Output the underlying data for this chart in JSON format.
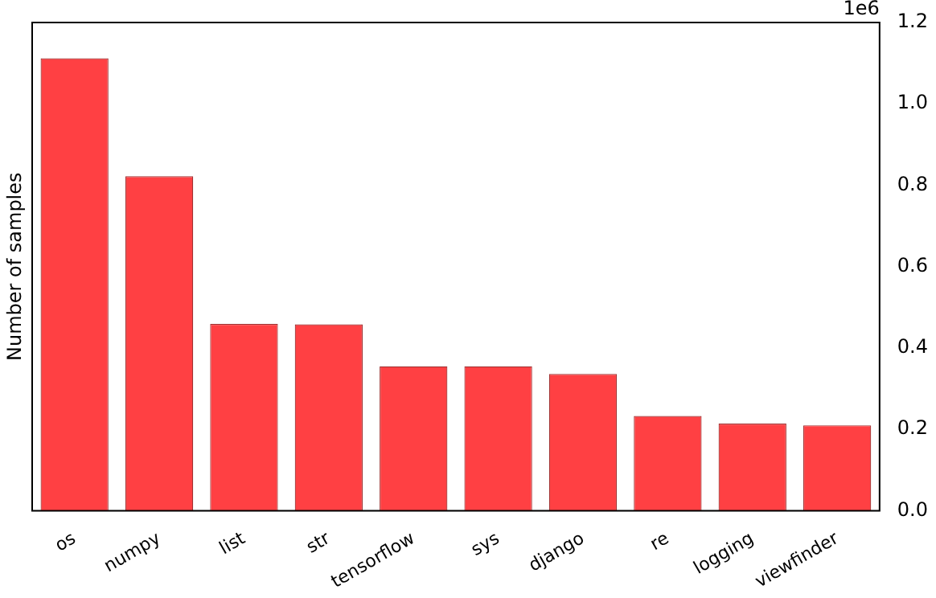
{
  "chart_data": {
    "type": "bar",
    "ylabel": "Number of samples",
    "categories": [
      "os",
      "numpy",
      "list",
      "str",
      "tensorflow",
      "sys",
      "django",
      "re",
      "logging",
      "viewfinder"
    ],
    "values": [
      1.112,
      0.822,
      0.459,
      0.458,
      0.355,
      0.355,
      0.336,
      0.233,
      0.214,
      0.21
    ],
    "color": "#ff4043",
    "ylim": [
      0,
      1.2
    ],
    "yticks": [
      {
        "value": 0,
        "label": "0.0"
      },
      0.2,
      0.4,
      0.6,
      0.8,
      {
        "value": 1,
        "label": "1.0"
      },
      1.2
    ],
    "annotations": [
      "1e6"
    ],
    "grid": false,
    "legend": false
  }
}
